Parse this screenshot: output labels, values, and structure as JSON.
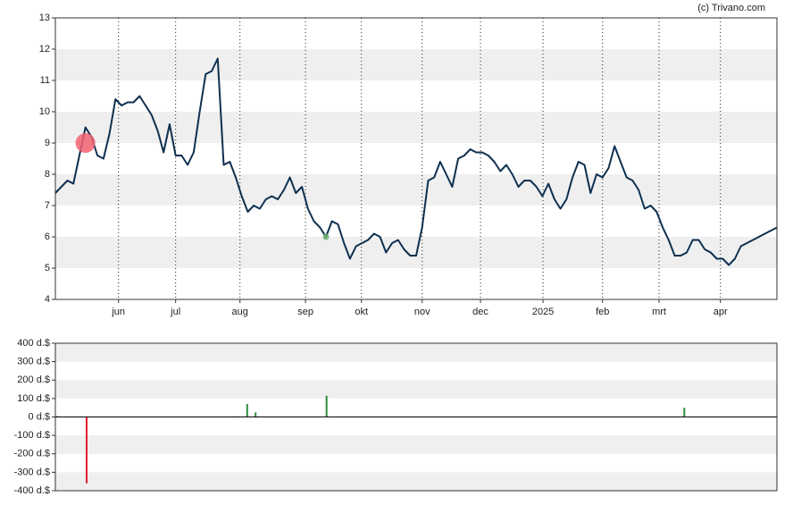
{
  "credit": "(c) Trivano.com",
  "chart_data": [
    {
      "type": "line",
      "xlim": [
        0,
        120
      ],
      "xticks": [
        {
          "value": 10.5,
          "label": "jun"
        },
        {
          "value": 20,
          "label": "jul"
        },
        {
          "value": 30.7,
          "label": "aug"
        },
        {
          "value": 41.6,
          "label": "sep"
        },
        {
          "value": 50.9,
          "label": "okt"
        },
        {
          "value": 61,
          "label": "nov"
        },
        {
          "value": 70.7,
          "label": "dec"
        },
        {
          "value": 81.1,
          "label": "2025"
        },
        {
          "value": 91,
          "label": "feb"
        },
        {
          "value": 100.4,
          "label": "mrt"
        },
        {
          "value": 110.6,
          "label": "apr"
        }
      ],
      "ylim": [
        4,
        13
      ],
      "yticks": [
        4,
        5,
        6,
        7,
        8,
        9,
        10,
        11,
        12,
        13
      ],
      "bands": [
        [
          5,
          6
        ],
        [
          7,
          8
        ],
        [
          9,
          10
        ],
        [
          11,
          12
        ]
      ],
      "series": [
        {
          "color": "#0e3050",
          "x": [
            0,
            1,
            2,
            3,
            4,
            5,
            6,
            7,
            8,
            9,
            10,
            11,
            12,
            13,
            14,
            15,
            16,
            17,
            18,
            19,
            20,
            21,
            22,
            23,
            24,
            25,
            26,
            27,
            28,
            29,
            30,
            31,
            32,
            33,
            34,
            35,
            36,
            37,
            38,
            39,
            40,
            41,
            42,
            43,
            44,
            45,
            46,
            47,
            48,
            49,
            50,
            51,
            52,
            53,
            54,
            55,
            56,
            57,
            58,
            59,
            60,
            61,
            62,
            63,
            64,
            65,
            66,
            67,
            68,
            69,
            70,
            71,
            72,
            73,
            74,
            75,
            76,
            77,
            78,
            79,
            80,
            81,
            82,
            83,
            84,
            85,
            86,
            87,
            88,
            89,
            90,
            91,
            92,
            93,
            94,
            95,
            96,
            97,
            98,
            99,
            100,
            101,
            102,
            103,
            104,
            105,
            106,
            107,
            108,
            109,
            110,
            111,
            112,
            113,
            114,
            115,
            116,
            117,
            118,
            119,
            120
          ],
          "values": [
            7.4,
            7.6,
            7.8,
            7.7,
            8.6,
            9.5,
            9.2,
            8.6,
            8.5,
            9.3,
            10.4,
            10.2,
            10.3,
            10.3,
            10.5,
            10.2,
            9.9,
            9.4,
            8.7,
            9.6,
            8.6,
            8.6,
            8.3,
            8.7,
            10.0,
            11.2,
            11.3,
            11.7,
            8.3,
            8.4,
            7.9,
            7.3,
            6.8,
            7.0,
            6.9,
            7.2,
            7.3,
            7.2,
            7.5,
            7.9,
            7.4,
            7.6,
            6.9,
            6.5,
            6.3,
            6.0,
            6.5,
            6.4,
            5.8,
            5.3,
            5.7,
            5.8,
            5.9,
            6.1,
            6.0,
            5.5,
            5.8,
            5.9,
            5.6,
            5.4,
            5.4,
            6.3,
            7.8,
            7.9,
            8.4,
            8.0,
            7.6,
            8.5,
            8.6,
            8.8,
            8.7,
            8.7,
            8.6,
            8.4,
            8.1,
            8.3,
            8.0,
            7.6,
            7.8,
            7.8,
            7.6,
            7.3,
            7.7,
            7.2,
            6.9,
            7.2,
            7.9,
            8.4,
            8.3,
            7.4,
            8.0,
            7.9,
            8.2,
            8.9,
            8.4,
            7.9,
            7.8,
            7.5,
            6.9,
            7.0,
            6.8,
            6.3,
            5.9,
            5.4,
            5.4,
            5.5,
            5.9,
            5.9,
            5.6,
            5.5,
            5.3,
            5.3,
            5.1,
            5.3,
            5.7,
            5.8,
            5.9,
            6.0,
            6.1,
            6.2,
            6.3
          ]
        }
      ],
      "markers": [
        {
          "x": 5,
          "y": 9.0,
          "color": "#f06070"
        },
        {
          "x": 45,
          "y": 6.0,
          "color": "#70b070"
        }
      ]
    },
    {
      "type": "bar",
      "xlim": [
        0,
        120
      ],
      "ylim": [
        -400,
        400
      ],
      "yticks": [
        {
          "value": -400,
          "label": "-400 d.$"
        },
        {
          "value": -300,
          "label": "-300 d.$"
        },
        {
          "value": -200,
          "label": "-200 d.$"
        },
        {
          "value": -100,
          "label": "-100 d.$"
        },
        {
          "value": 0,
          "label": "0 d.$"
        },
        {
          "value": 100,
          "label": "100 d.$"
        },
        {
          "value": 200,
          "label": "200 d.$"
        },
        {
          "value": 300,
          "label": "300 d.$"
        },
        {
          "value": 400,
          "label": "400 d.$"
        }
      ],
      "bands": [
        [
          -400,
          -300
        ],
        [
          -200,
          -100
        ],
        [
          100,
          200
        ],
        [
          300,
          400
        ]
      ],
      "x": [
        0.3,
        5.2,
        30.4,
        31.9,
        33.3,
        45.1,
        104.6
      ],
      "values": [
        5,
        -360,
        3,
        70,
        25,
        115,
        50
      ],
      "colors": [
        "#2e8b3a",
        "#e0202a",
        "#2e8b3a",
        "#2e8b3a",
        "#2e8b3a",
        "#2e8b3a",
        "#2e8b3a"
      ]
    }
  ]
}
